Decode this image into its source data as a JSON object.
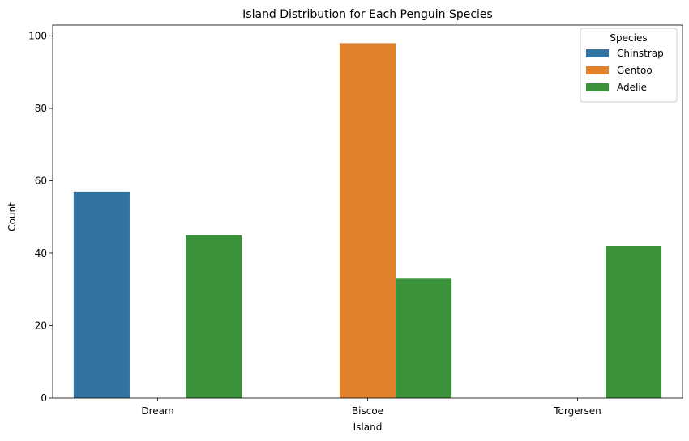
{
  "chart_data": {
    "type": "bar",
    "title": "Island Distribution for Each Penguin Species",
    "xlabel": "Island",
    "ylabel": "Count",
    "categories": [
      "Dream",
      "Biscoe",
      "Torgersen"
    ],
    "ylim": [
      0,
      103
    ],
    "yticks": [
      0,
      20,
      40,
      60,
      80,
      100
    ],
    "grid": false,
    "legend": {
      "title": "Species",
      "placement": "top-right"
    },
    "series": [
      {
        "name": "Chinstrap",
        "color": "#3274a1",
        "values": [
          57,
          0,
          0
        ]
      },
      {
        "name": "Gentoo",
        "color": "#e1812c",
        "values": [
          0,
          98,
          0
        ]
      },
      {
        "name": "Adelie",
        "color": "#3a923a",
        "values": [
          45,
          33,
          42
        ]
      }
    ]
  }
}
